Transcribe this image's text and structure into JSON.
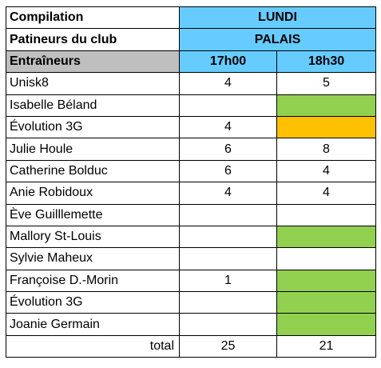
{
  "header": {
    "compilation_label": "Compilation",
    "day": "LUNDI",
    "club_label": "Patineurs du club",
    "location": "PALAIS",
    "trainers_label": "Entraîneurs",
    "time_1": "17h00",
    "time_2": "18h30"
  },
  "rows": [
    {
      "name": "Unisk8",
      "t1": "4",
      "t2": "5"
    },
    {
      "name": "Isabelle Béland",
      "t1": "",
      "t2": ""
    },
    {
      "name": "Évolution 3G",
      "t1": "4",
      "t2": ""
    },
    {
      "name": "Julie Houle",
      "t1": "6",
      "t2": "8"
    },
    {
      "name": "Catherine Bolduc",
      "t1": "6",
      "t2": "4"
    },
    {
      "name": "Anie Robidoux",
      "t1": "4",
      "t2": "4"
    },
    {
      "name": "Ève Guilllemette",
      "t1": "",
      "t2": ""
    },
    {
      "name": "Mallory St-Louis",
      "t1": "",
      "t2": ""
    },
    {
      "name": "Sylvie Maheux",
      "t1": "",
      "t2": ""
    },
    {
      "name": "Françoise D.-Morin",
      "t1": "1",
      "t2": ""
    },
    {
      "name": "Évolution 3G",
      "t1": "",
      "t2": ""
    },
    {
      "name": "Joanie Germain",
      "t1": "",
      "t2": ""
    }
  ],
  "total": {
    "label": "total",
    "t1": "25",
    "t2": "21"
  },
  "colors": {
    "header_blue": "#66ccff",
    "header_grey": "#bfbfbf",
    "highlight_green": "#92d050",
    "highlight_orange": "#ffc000"
  }
}
